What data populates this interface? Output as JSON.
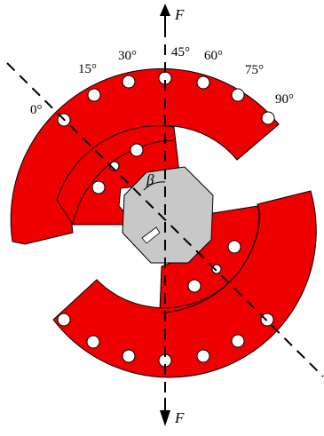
{
  "diagram": {
    "angle_labels": [
      "0°",
      "15°",
      "30°",
      "45°",
      "60°",
      "75°",
      "90°"
    ],
    "force_top": "F",
    "force_bottom": "F",
    "beta": "β"
  },
  "colors": {
    "specimen": "#ee0000",
    "insert": "#c8c8c8",
    "hole": "#ffffff",
    "outline": "#000000"
  }
}
